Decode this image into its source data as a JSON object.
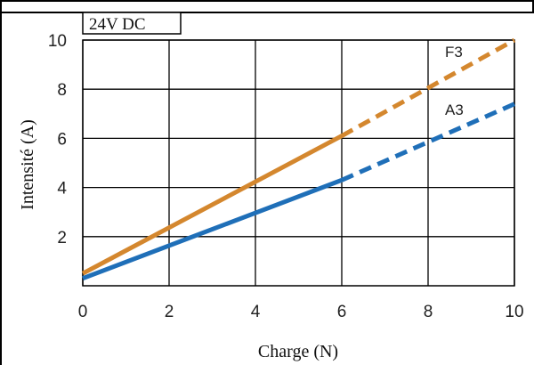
{
  "chart_data": {
    "type": "line",
    "title": "24V DC",
    "xlabel": "Charge (N)",
    "ylabel": "Intensité (A)",
    "xlim": [
      0,
      10
    ],
    "ylim": [
      0,
      10
    ],
    "x_ticks": [
      "0",
      "2",
      "4",
      "6",
      "8",
      "10"
    ],
    "y_ticks": [
      "2",
      "4",
      "6",
      "8",
      "10"
    ],
    "grid": true,
    "series": [
      {
        "name": "F3",
        "color": "#D4872E",
        "solid": {
          "x": [
            0,
            6
          ],
          "y": [
            0.5,
            6.1
          ]
        },
        "dashed": {
          "x": [
            6,
            10
          ],
          "y": [
            6.1,
            10.0
          ]
        }
      },
      {
        "name": "A3",
        "color": "#1F6FB8",
        "solid": {
          "x": [
            0,
            6
          ],
          "y": [
            0.3,
            4.3
          ]
        },
        "dashed": {
          "x": [
            6,
            10
          ],
          "y": [
            4.3,
            7.4
          ]
        }
      }
    ]
  }
}
